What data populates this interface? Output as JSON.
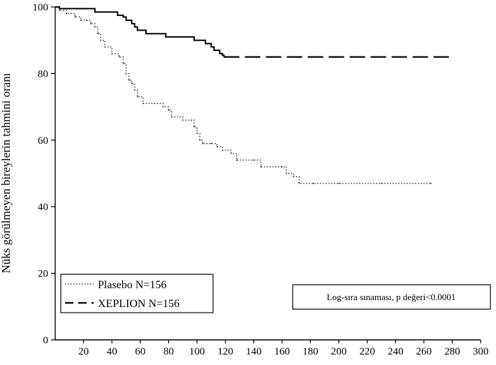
{
  "chart_data": {
    "type": "line",
    "title": "",
    "xlabel": "",
    "ylabel": "Nüks görülmeyen bireylerin tahmini oranı",
    "xlim": [
      0,
      300
    ],
    "ylim": [
      0,
      100
    ],
    "x_ticks": [
      20,
      40,
      60,
      80,
      100,
      120,
      140,
      160,
      180,
      200,
      220,
      240,
      260,
      280,
      300
    ],
    "y_ticks": [
      0,
      20,
      40,
      60,
      80,
      100
    ],
    "grid": false,
    "legend": {
      "placement": "bottom-left"
    },
    "annotation": "Log-sıra sınaması, p değeri<0.0001",
    "series": [
      {
        "name": "Plasebo N=156",
        "style": "dotted",
        "color": "#333333",
        "points": [
          [
            0,
            100
          ],
          [
            3,
            99
          ],
          [
            8,
            98
          ],
          [
            14,
            97
          ],
          [
            18,
            96
          ],
          [
            22,
            96
          ],
          [
            25,
            95
          ],
          [
            28,
            94
          ],
          [
            30,
            92
          ],
          [
            32,
            90
          ],
          [
            35,
            88
          ],
          [
            40,
            86
          ],
          [
            45,
            85
          ],
          [
            48,
            83
          ],
          [
            50,
            80
          ],
          [
            52,
            78
          ],
          [
            54,
            77
          ],
          [
            56,
            75
          ],
          [
            58,
            73
          ],
          [
            62,
            71
          ],
          [
            70,
            71
          ],
          [
            76,
            70
          ],
          [
            80,
            69
          ],
          [
            82,
            67
          ],
          [
            90,
            66
          ],
          [
            96,
            66
          ],
          [
            98,
            64
          ],
          [
            100,
            62
          ],
          [
            102,
            60
          ],
          [
            104,
            59
          ],
          [
            110,
            59
          ],
          [
            114,
            58
          ],
          [
            118,
            57
          ],
          [
            124,
            56
          ],
          [
            128,
            54
          ],
          [
            140,
            54
          ],
          [
            145,
            52
          ],
          [
            160,
            52
          ],
          [
            163,
            50
          ],
          [
            168,
            49
          ],
          [
            172,
            47
          ],
          [
            182,
            47
          ],
          [
            200,
            47
          ],
          [
            230,
            47
          ],
          [
            265,
            47
          ]
        ]
      },
      {
        "name": "XEPLION N=156",
        "style": "solid",
        "color": "#000000",
        "points": [
          [
            0,
            100
          ],
          [
            3,
            99.5
          ],
          [
            12,
            99.5
          ],
          [
            26,
            99.5
          ],
          [
            28,
            98.5
          ],
          [
            42,
            98.5
          ],
          [
            44,
            97.5
          ],
          [
            48,
            97
          ],
          [
            50,
            96
          ],
          [
            54,
            95
          ],
          [
            56,
            94
          ],
          [
            58,
            93
          ],
          [
            64,
            92
          ],
          [
            76,
            92
          ],
          [
            78,
            91
          ],
          [
            96,
            91
          ],
          [
            98,
            90
          ],
          [
            104,
            90
          ],
          [
            106,
            89
          ],
          [
            110,
            88
          ],
          [
            112,
            87
          ],
          [
            116,
            86
          ],
          [
            118,
            85.5
          ],
          [
            119,
            85
          ],
          [
            150,
            85
          ],
          [
            190,
            85
          ],
          [
            220,
            85
          ],
          [
            240,
            85
          ],
          [
            265,
            85
          ],
          [
            280,
            85
          ]
        ],
        "dashed_after_x": 120
      }
    ]
  }
}
